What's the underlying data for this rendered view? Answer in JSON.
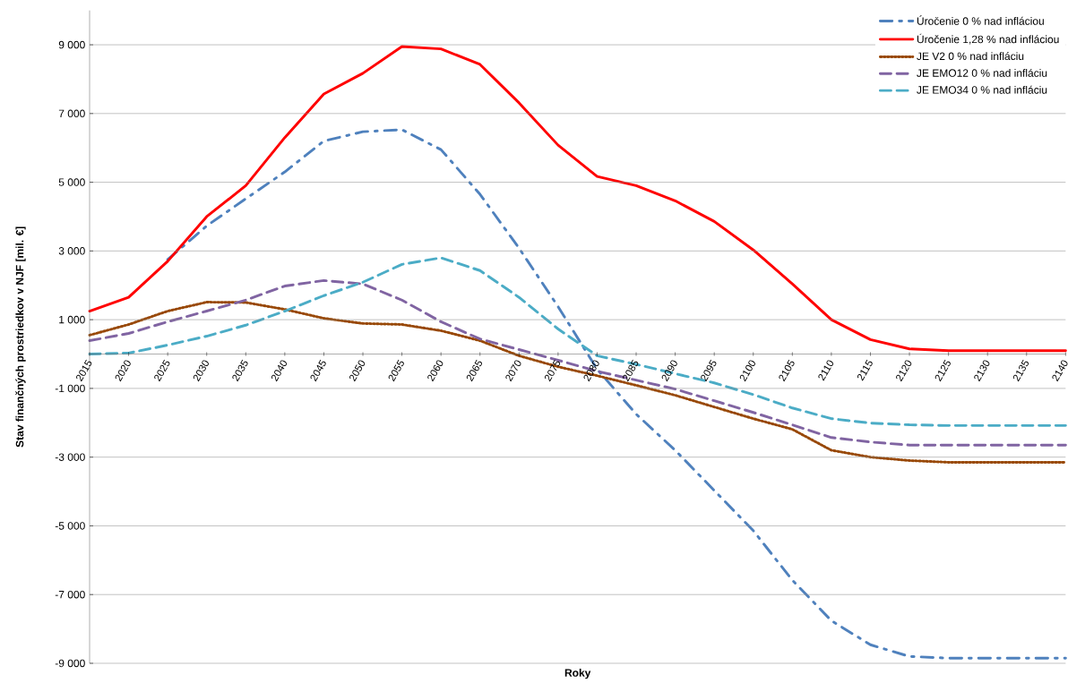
{
  "chart_data": {
    "type": "line",
    "xlabel": "Roky",
    "ylabel": "Stav finančných prostriedkov v NJF [mil. €]",
    "x": [
      2015,
      2020,
      2025,
      2030,
      2035,
      2040,
      2045,
      2050,
      2055,
      2060,
      2065,
      2070,
      2075,
      2080,
      2085,
      2090,
      2095,
      2100,
      2105,
      2110,
      2115,
      2120,
      2125,
      2130,
      2135,
      2140
    ],
    "series": [
      {
        "name": "Úročenie 0 % nad infláciou",
        "color": "#4f81bd",
        "line_style": "dashdot",
        "values": [
          null,
          null,
          2750,
          3730,
          4520,
          5300,
          6200,
          6470,
          6530,
          5950,
          4650,
          3080,
          1380,
          -440,
          -1750,
          -2800,
          -3970,
          -5140,
          -6580,
          -7760,
          -8460,
          -8800,
          -8850,
          -8850,
          -8850,
          -8850
        ]
      },
      {
        "name": "Úročenie 1,28 % nad infláciou",
        "color": "#ff0000",
        "line_style": "solid",
        "values": [
          1250,
          1650,
          2700,
          4000,
          4900,
          6300,
          7570,
          8170,
          8950,
          8880,
          8430,
          7310,
          6080,
          5170,
          4900,
          4460,
          3860,
          3030,
          2040,
          1000,
          420,
          150,
          100,
          100,
          100,
          100
        ]
      },
      {
        "name": "JE V2 0 % nad infláciu",
        "color": "#984807",
        "line_style": "dotted",
        "values": [
          550,
          860,
          1250,
          1510,
          1500,
          1300,
          1040,
          890,
          860,
          680,
          390,
          -50,
          -370,
          -630,
          -910,
          -1200,
          -1540,
          -1880,
          -2190,
          -2800,
          -3000,
          -3100,
          -3150,
          -3150,
          -3150,
          -3150
        ]
      },
      {
        "name": "JE EMO12 0 % nad infláciu",
        "color": "#8064a2",
        "line_style": "dashed",
        "values": [
          390,
          600,
          940,
          1250,
          1570,
          1980,
          2140,
          2040,
          1570,
          940,
          440,
          130,
          -180,
          -500,
          -760,
          -1020,
          -1360,
          -1700,
          -2060,
          -2430,
          -2560,
          -2650,
          -2650,
          -2650,
          -2650,
          -2650
        ]
      },
      {
        "name": "JE EMO34 0 % nad infláciu",
        "color": "#4bacc6",
        "line_style": "dashed",
        "values": [
          0,
          30,
          260,
          520,
          840,
          1250,
          1700,
          2090,
          2610,
          2800,
          2430,
          1650,
          730,
          -50,
          -300,
          -570,
          -840,
          -1180,
          -1570,
          -1880,
          -2010,
          -2060,
          -2080,
          -2080,
          -2080,
          -2080
        ]
      }
    ],
    "xlim": [
      2015,
      2140
    ],
    "xticks": [
      2015,
      2020,
      2025,
      2030,
      2035,
      2040,
      2045,
      2050,
      2055,
      2060,
      2065,
      2070,
      2075,
      2080,
      2085,
      2090,
      2095,
      2100,
      2105,
      2110,
      2115,
      2120,
      2125,
      2130,
      2135,
      2140
    ],
    "ylim": [
      -9000,
      10000
    ],
    "yticks": [
      {
        "value": -9000,
        "label": "-9 000"
      },
      {
        "value": -7000,
        "label": "-7 000"
      },
      {
        "value": -5000,
        "label": "-5 000"
      },
      {
        "value": -3000,
        "label": "-3 000"
      },
      {
        "value": -1000,
        "label": "-1 000"
      },
      {
        "value": 1000,
        "label": "1 000"
      },
      {
        "value": 3000,
        "label": "3 000"
      },
      {
        "value": 5000,
        "label": "5 000"
      },
      {
        "value": 7000,
        "label": "7 000"
      },
      {
        "value": 9000,
        "label": "9 000"
      }
    ],
    "grid": "y",
    "legend": "top right"
  }
}
